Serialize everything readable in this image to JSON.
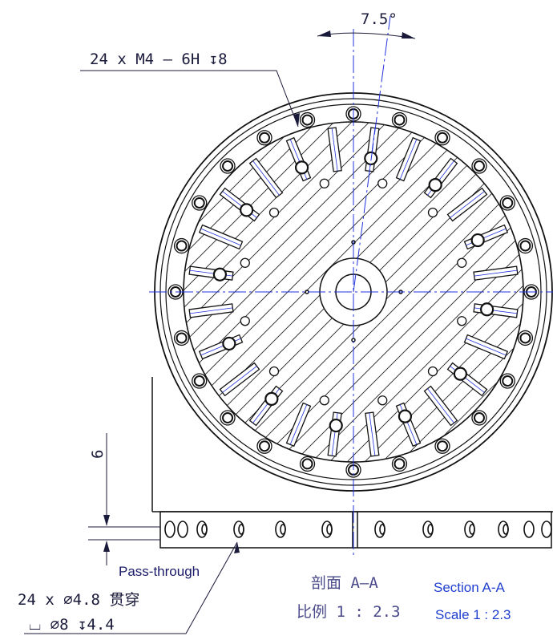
{
  "annotations": {
    "angle": "7.5°",
    "thread_callout": "24 x M4 – 6H ↧8",
    "dimension": "6",
    "pass_through": "Pass-through",
    "hole_callout_1": "24 x ⌀4.8 贯穿",
    "hole_callout_2": "⌴ ⌀8 ↧4.4"
  },
  "section_label": {
    "cn_title": "剖面 A–A",
    "cn_scale": "比例 1 : 2.3",
    "en_title": "Section A-A",
    "en_scale": "Scale 1 : 2.3"
  }
}
